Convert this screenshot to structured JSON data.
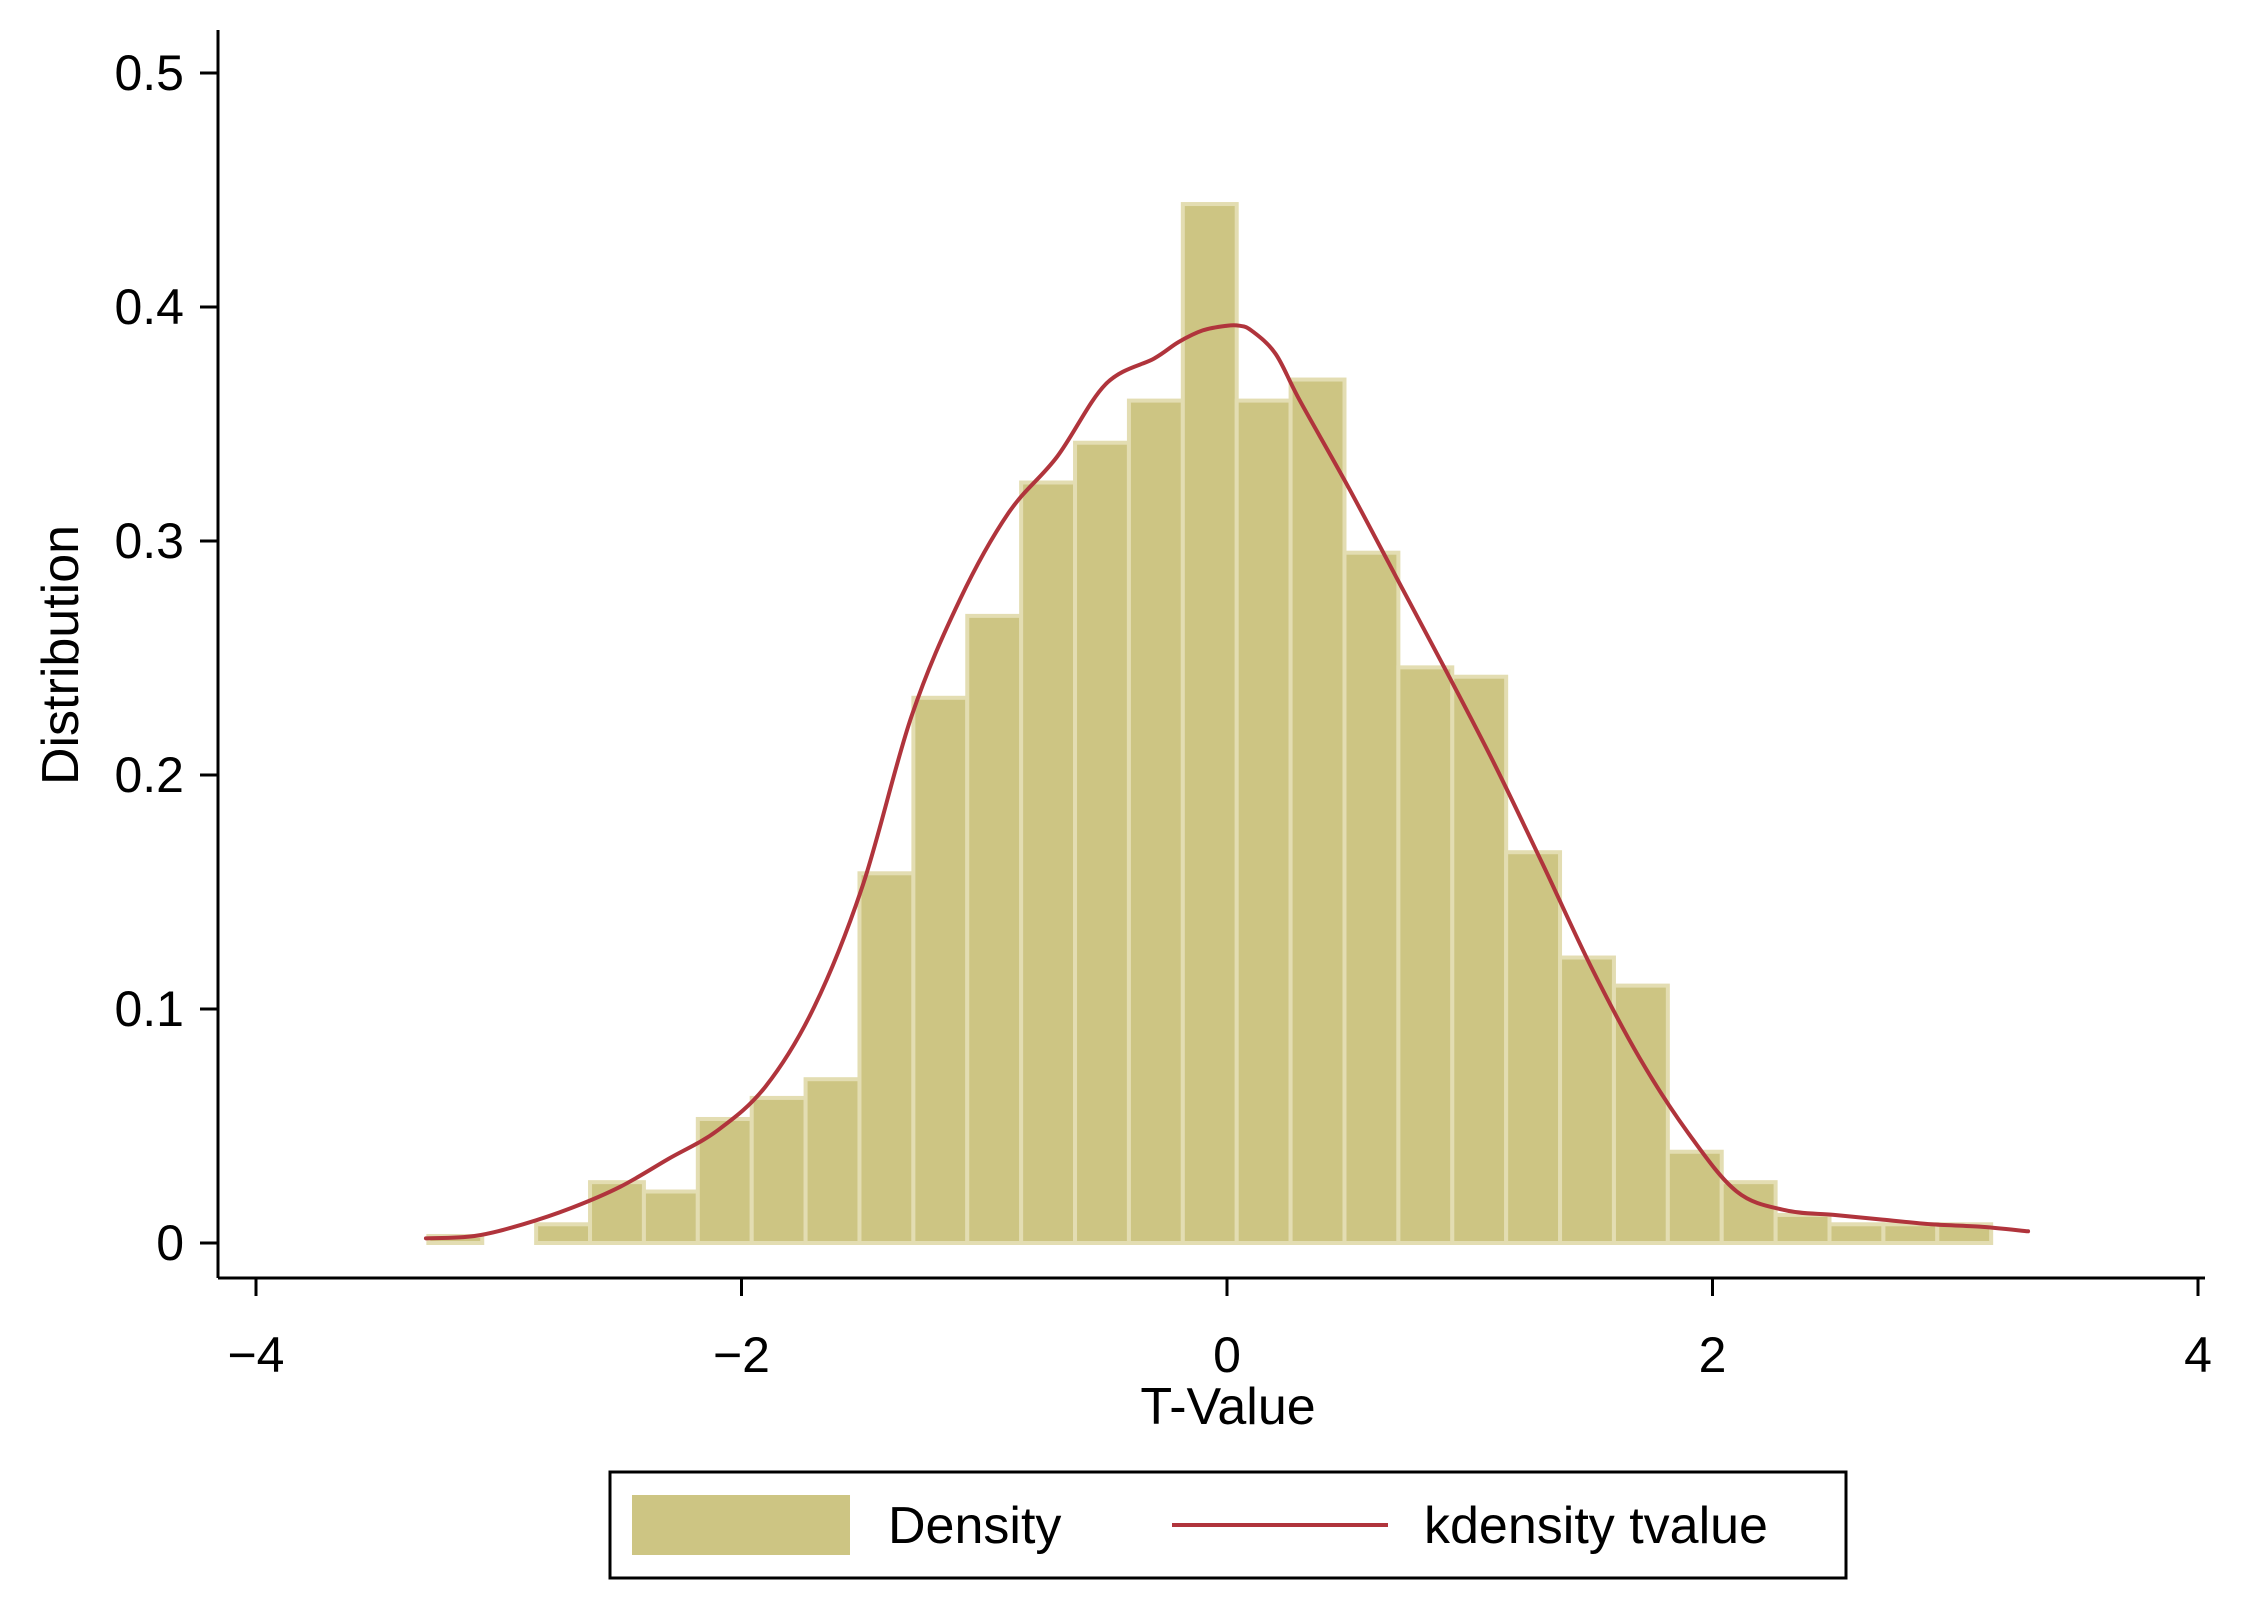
{
  "chart_data": {
    "type": "bar",
    "xlabel": "T-Value",
    "ylabel": "Distribution",
    "xlim": [
      -4,
      4
    ],
    "ylim": [
      0,
      0.5
    ],
    "x_ticks": [
      -4,
      -2,
      0,
      2,
      4
    ],
    "x_tick_labels": [
      "−4",
      "−2",
      "0",
      "2",
      "4"
    ],
    "y_ticks": [
      0,
      0.1,
      0.2,
      0.3,
      0.4,
      0.5
    ],
    "y_tick_labels": [
      "0",
      "0.1",
      "0.2",
      "0.3",
      "0.4",
      "0.5"
    ],
    "grid": false,
    "legend": {
      "placement": "bottom",
      "entries": [
        "Density",
        "kdensity tvalue"
      ]
    },
    "colors": {
      "bar_fill": "#cdc583",
      "bar_edge": "#e3ddb2",
      "line": "#b0343c",
      "axis": "#000000"
    },
    "histogram": {
      "name": "Density",
      "bin_width": 0.222,
      "bins": [
        {
          "x0": -3.29,
          "value": 0.003
        },
        {
          "x0": -2.846,
          "value": 0.008
        },
        {
          "x0": -2.624,
          "value": 0.026
        },
        {
          "x0": -2.402,
          "value": 0.022
        },
        {
          "x0": -2.18,
          "value": 0.053
        },
        {
          "x0": -1.958,
          "value": 0.062
        },
        {
          "x0": -1.736,
          "value": 0.07
        },
        {
          "x0": -1.514,
          "value": 0.158
        },
        {
          "x0": -1.292,
          "value": 0.233
        },
        {
          "x0": -1.07,
          "value": 0.268
        },
        {
          "x0": -0.848,
          "value": 0.325
        },
        {
          "x0": -0.626,
          "value": 0.342
        },
        {
          "x0": -0.404,
          "value": 0.36
        },
        {
          "x0": -0.182,
          "value": 0.444
        },
        {
          "x0": 0.04,
          "value": 0.36
        },
        {
          "x0": 0.262,
          "value": 0.369
        },
        {
          "x0": 0.484,
          "value": 0.295
        },
        {
          "x0": 0.706,
          "value": 0.246
        },
        {
          "x0": 0.928,
          "value": 0.242
        },
        {
          "x0": 1.15,
          "value": 0.167
        },
        {
          "x0": 1.372,
          "value": 0.122
        },
        {
          "x0": 1.594,
          "value": 0.11
        },
        {
          "x0": 1.816,
          "value": 0.039
        },
        {
          "x0": 2.038,
          "value": 0.026
        },
        {
          "x0": 2.26,
          "value": 0.012
        },
        {
          "x0": 2.482,
          "value": 0.008
        },
        {
          "x0": 2.704,
          "value": 0.008
        },
        {
          "x0": 2.926,
          "value": 0.008
        }
      ]
    },
    "kde": {
      "name": "kdensity tvalue",
      "x": [
        -3.3,
        -3.1,
        -2.9,
        -2.7,
        -2.5,
        -2.3,
        -2.1,
        -1.9,
        -1.7,
        -1.5,
        -1.3,
        -1.1,
        -0.9,
        -0.7,
        -0.5,
        -0.3,
        -0.2,
        -0.1,
        0.0,
        0.05,
        0.1,
        0.2,
        0.3,
        0.5,
        0.7,
        0.9,
        1.1,
        1.3,
        1.5,
        1.7,
        1.9,
        2.1,
        2.3,
        2.5,
        2.7,
        2.9,
        3.1,
        3.3
      ],
      "y": [
        0.002,
        0.003,
        0.008,
        0.015,
        0.024,
        0.036,
        0.048,
        0.067,
        0.101,
        0.153,
        0.225,
        0.275,
        0.312,
        0.336,
        0.367,
        0.378,
        0.385,
        0.39,
        0.392,
        0.392,
        0.39,
        0.38,
        0.36,
        0.323,
        0.284,
        0.245,
        0.205,
        0.162,
        0.118,
        0.079,
        0.047,
        0.022,
        0.014,
        0.012,
        0.01,
        0.008,
        0.007,
        0.005
      ]
    }
  }
}
